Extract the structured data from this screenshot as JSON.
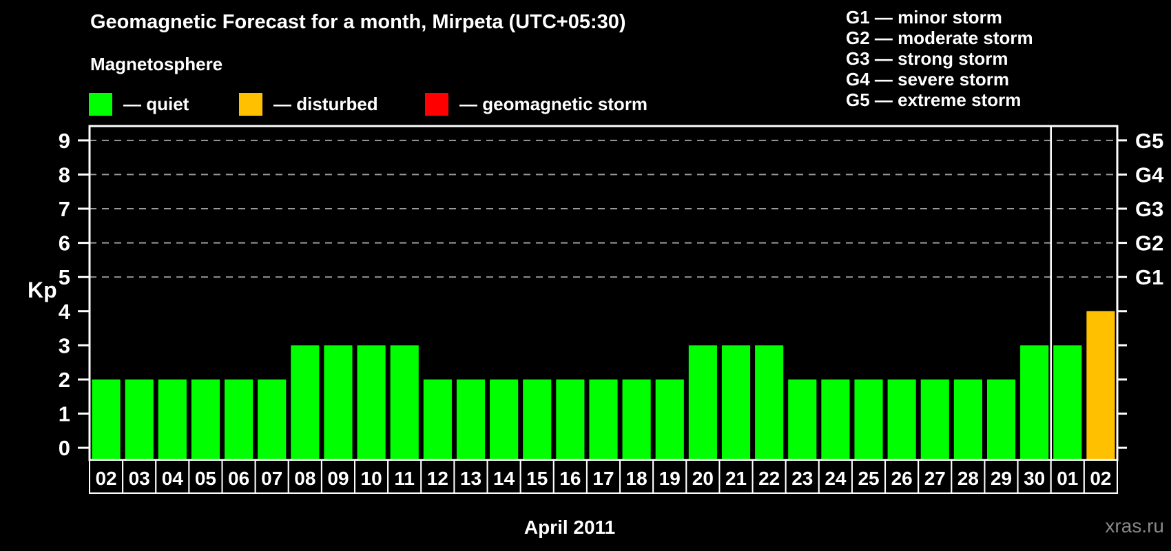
{
  "title": "Geomagnetic Forecast for a month, Mirpeta (UTC+05:30)",
  "legend": {
    "heading": "Magnetosphere",
    "items": [
      {
        "name": "quiet",
        "label": "— quiet",
        "color": "#00ff00"
      },
      {
        "name": "disturbed",
        "label": "— disturbed",
        "color": "#ffc000"
      },
      {
        "name": "storm",
        "label": "— geomagnetic storm",
        "color": "#ff0000"
      }
    ]
  },
  "g_scale_legend": [
    "G1 — minor storm",
    "G2 — moderate storm",
    "G3 — strong storm",
    "G4 — severe storm",
    "G5 — extreme storm"
  ],
  "watermark": "xras.ru",
  "chart_data": {
    "type": "bar",
    "title": "Geomagnetic Forecast for a month, Mirpeta (UTC+05:30)",
    "xlabel": "April 2011",
    "ylabel": "Kp",
    "ylim": [
      -0.36,
      9.42
    ],
    "yticks": [
      0,
      1,
      2,
      3,
      4,
      5,
      6,
      7,
      8,
      9
    ],
    "gridlines_at_kp": [
      5,
      6,
      7,
      8,
      9
    ],
    "grid_on": true,
    "right_axis_ticks": [
      {
        "kp": 5,
        "label": "G1"
      },
      {
        "kp": 6,
        "label": "G2"
      },
      {
        "kp": 7,
        "label": "G3"
      },
      {
        "kp": 8,
        "label": "G4"
      },
      {
        "kp": 9,
        "label": "G5"
      }
    ],
    "categories": [
      "02",
      "03",
      "04",
      "05",
      "06",
      "07",
      "08",
      "09",
      "10",
      "11",
      "12",
      "13",
      "14",
      "15",
      "16",
      "17",
      "18",
      "19",
      "20",
      "21",
      "22",
      "23",
      "24",
      "25",
      "26",
      "27",
      "28",
      "29",
      "30",
      "01",
      "02"
    ],
    "values": [
      2,
      2,
      2,
      2,
      2,
      2,
      3,
      3,
      3,
      3,
      2,
      2,
      2,
      2,
      2,
      2,
      2,
      2,
      3,
      3,
      3,
      2,
      2,
      2,
      2,
      2,
      2,
      2,
      3,
      3,
      4
    ],
    "bar_status": [
      "quiet",
      "quiet",
      "quiet",
      "quiet",
      "quiet",
      "quiet",
      "quiet",
      "quiet",
      "quiet",
      "quiet",
      "quiet",
      "quiet",
      "quiet",
      "quiet",
      "quiet",
      "quiet",
      "quiet",
      "quiet",
      "quiet",
      "quiet",
      "quiet",
      "quiet",
      "quiet",
      "quiet",
      "quiet",
      "quiet",
      "quiet",
      "quiet",
      "quiet",
      "quiet",
      "disturbed"
    ],
    "status_colors": {
      "quiet": "#00ff00",
      "disturbed": "#ffc000",
      "storm": "#ff0000"
    },
    "month_separator_index": 29,
    "axis_color": "#ffffff",
    "grid_color": "#9a9a9a",
    "legend_position": "top"
  }
}
